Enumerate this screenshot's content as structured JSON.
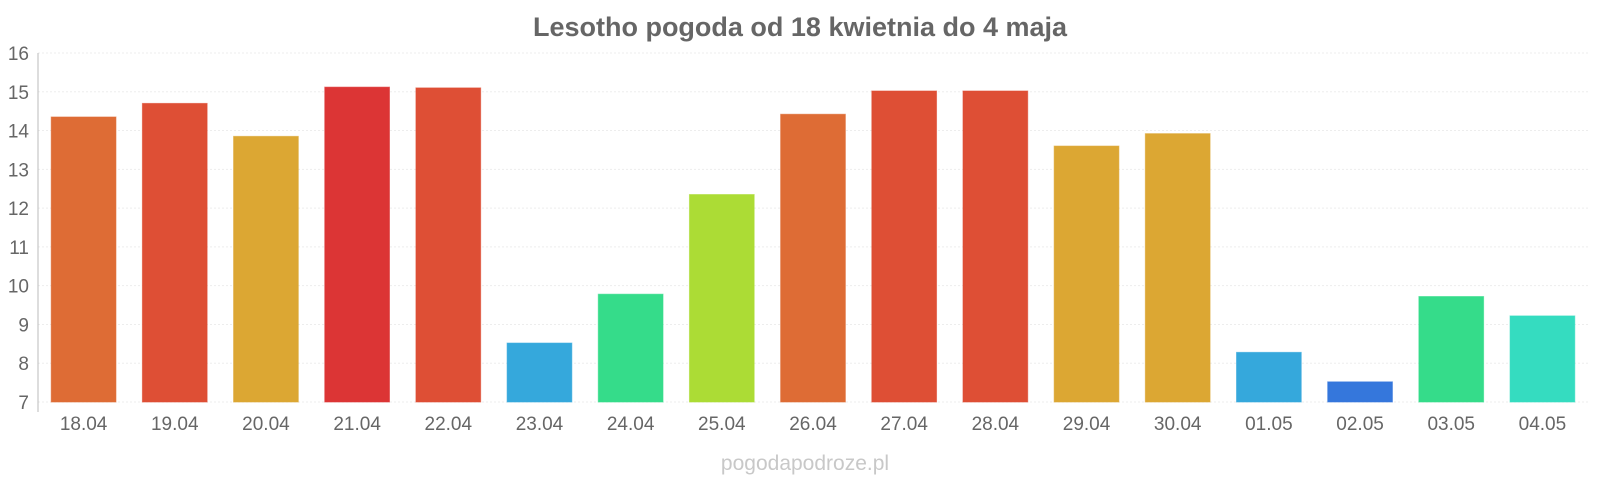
{
  "chart_data": {
    "type": "bar",
    "title": "Lesotho pogoda od 18 kwietnia do 4 maja",
    "xlabel": "",
    "ylabel": "",
    "categories": [
      "18.04",
      "19.04",
      "20.04",
      "21.04",
      "22.04",
      "23.04",
      "24.04",
      "25.04",
      "26.04",
      "27.04",
      "28.04",
      "29.04",
      "30.04",
      "01.05",
      "02.05",
      "03.05",
      "04.05"
    ],
    "values": [
      14.35,
      14.7,
      13.85,
      15.12,
      15.1,
      8.52,
      9.78,
      12.35,
      14.42,
      15.02,
      15.02,
      13.6,
      13.92,
      8.28,
      7.52,
      9.72,
      9.22
    ],
    "colors": [
      "#de6c35",
      "#de4f35",
      "#dca733",
      "#dc3535",
      "#de4f35",
      "#35a8dc",
      "#35dc8a",
      "#acdc35",
      "#de6c35",
      "#de4f35",
      "#de4f35",
      "#dca733",
      "#dca733",
      "#35a8dc",
      "#3577dc",
      "#35dc8a",
      "#35dcc0"
    ],
    "ylim": [
      7,
      16
    ],
    "yticks": [
      7,
      8,
      9,
      10,
      11,
      12,
      13,
      14,
      15,
      16
    ],
    "grid": true,
    "legend": "none"
  },
  "watermark": "pogodapodroze.pl"
}
